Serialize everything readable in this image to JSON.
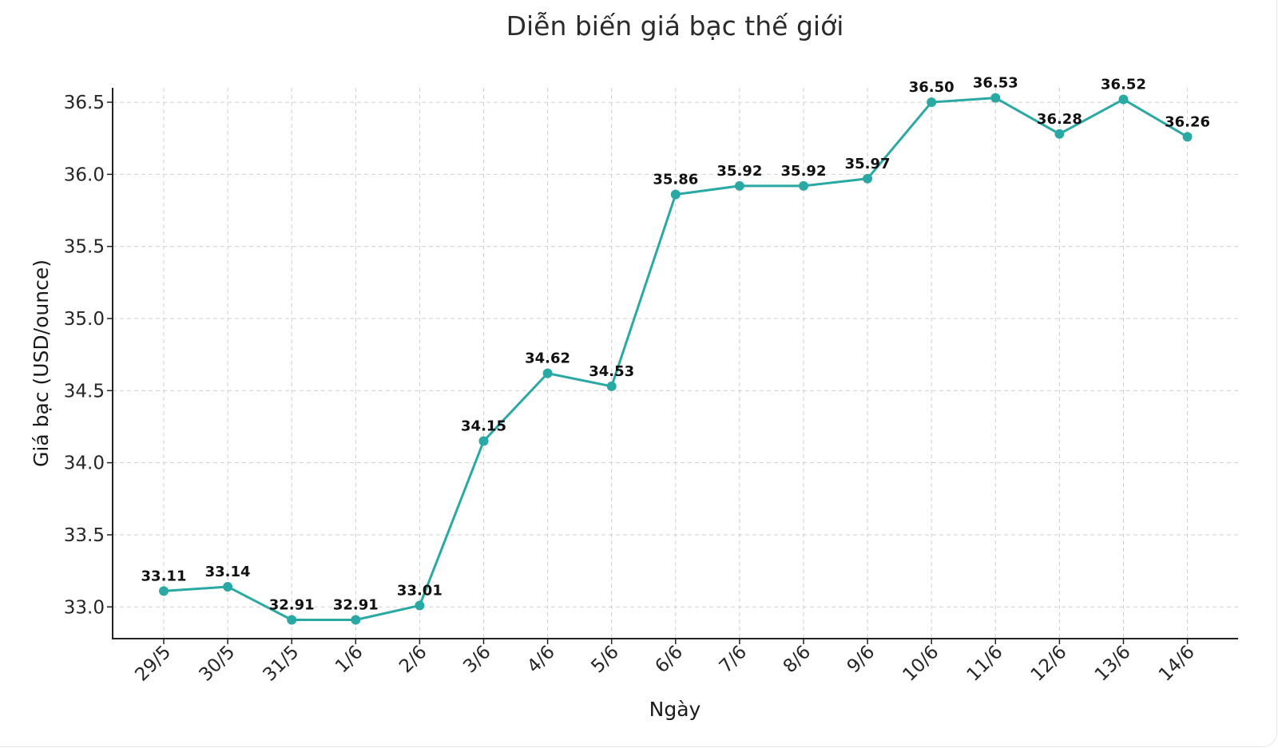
{
  "chart_data": {
    "type": "line",
    "title": "Diễn biến giá bạc thế giới",
    "xlabel": "Ngày",
    "ylabel": "Giá bạc (USD/ounce)",
    "categories": [
      "29/5",
      "30/5",
      "31/5",
      "1/6",
      "2/6",
      "3/6",
      "4/6",
      "5/6",
      "6/6",
      "7/6",
      "8/6",
      "9/6",
      "10/6",
      "11/6",
      "12/6",
      "13/6",
      "14/6"
    ],
    "series": [
      {
        "values": [
          33.11,
          33.14,
          32.91,
          32.91,
          33.01,
          34.15,
          34.62,
          34.53,
          35.86,
          35.92,
          35.92,
          35.97,
          36.5,
          36.53,
          36.28,
          36.52,
          36.26
        ],
        "data_labels": [
          "33.11",
          "33.14",
          "32.91",
          "32.91",
          "33.01",
          "34.15",
          "34.62",
          "34.53",
          "35.86",
          "35.92",
          "35.92",
          "35.97",
          "36.50",
          "36.53",
          "36.28",
          "36.52",
          "36.26"
        ]
      }
    ],
    "y_ticks": [
      "33.0",
      "33.5",
      "34.0",
      "34.5",
      "35.0",
      "35.5",
      "36.0",
      "36.5"
    ],
    "y_tick_values": [
      33.0,
      33.5,
      34.0,
      34.5,
      35.0,
      35.5,
      36.0,
      36.5
    ],
    "ylim": [
      32.78,
      36.6
    ],
    "grid": true,
    "line_color": "#2aa9a4",
    "marker": "circle"
  }
}
